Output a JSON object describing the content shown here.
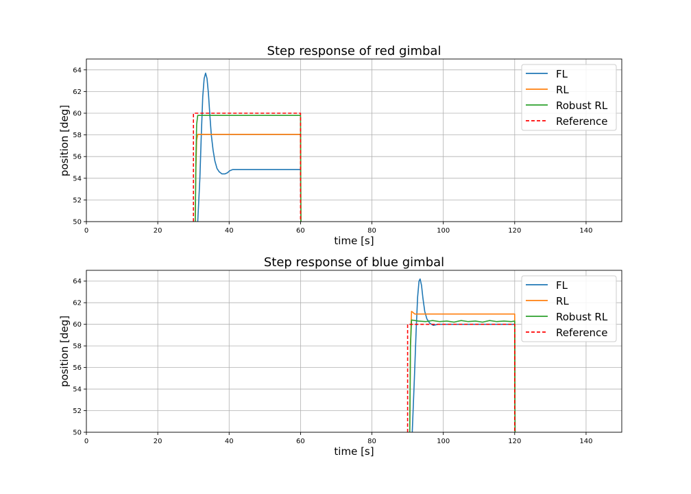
{
  "chart_data": [
    {
      "type": "line",
      "title": "Step response of red gimbal",
      "xlabel": "time [s]",
      "ylabel": "position [deg]",
      "xlim": [
        0,
        150
      ],
      "ylim": [
        50,
        65
      ],
      "xticks": [
        0,
        20,
        40,
        60,
        80,
        100,
        120,
        140
      ],
      "yticks": [
        50,
        52,
        54,
        56,
        58,
        60,
        62,
        64
      ],
      "grid": true,
      "legend_position": "top-right",
      "series": [
        {
          "name": "FL",
          "color": "#1f77b4",
          "style": "solid",
          "points": [
            [
              31.2,
              50
            ],
            [
              31.8,
              54
            ],
            [
              32.2,
              58
            ],
            [
              32.6,
              61.5
            ],
            [
              33,
              63.2
            ],
            [
              33.4,
              63.7
            ],
            [
              33.8,
              63.2
            ],
            [
              34.2,
              61.8
            ],
            [
              34.6,
              59.8
            ],
            [
              35,
              58
            ],
            [
              35.5,
              56.6
            ],
            [
              36,
              55.6
            ],
            [
              36.6,
              54.9
            ],
            [
              37.2,
              54.6
            ],
            [
              38,
              54.4
            ],
            [
              38.8,
              54.4
            ],
            [
              39.5,
              54.5
            ],
            [
              40.2,
              54.7
            ],
            [
              41,
              54.8
            ],
            [
              45,
              54.8
            ],
            [
              50,
              54.8
            ],
            [
              55,
              54.8
            ],
            [
              60,
              54.8
            ],
            [
              60.1,
              50
            ]
          ]
        },
        {
          "name": "RL",
          "color": "#ff7f0e",
          "style": "solid",
          "points": [
            [
              30.5,
              50
            ],
            [
              30.7,
              55
            ],
            [
              30.9,
              57.5
            ],
            [
              31.2,
              58.05
            ],
            [
              35,
              58.05
            ],
            [
              45,
              58.05
            ],
            [
              55,
              58.05
            ],
            [
              60,
              58.05
            ],
            [
              60.1,
              50
            ]
          ]
        },
        {
          "name": "Robust RL",
          "color": "#2ca02c",
          "style": "solid",
          "points": [
            [
              30.5,
              50
            ],
            [
              30.7,
              56
            ],
            [
              30.9,
              59
            ],
            [
              31.2,
              59.8
            ],
            [
              35,
              59.8
            ],
            [
              45,
              59.8
            ],
            [
              55,
              59.8
            ],
            [
              60,
              59.8
            ],
            [
              60.1,
              50
            ]
          ]
        },
        {
          "name": "Reference",
          "color": "#ff0000",
          "style": "dashed",
          "points": [
            [
              30,
              50
            ],
            [
              30,
              60
            ],
            [
              60,
              60
            ],
            [
              60,
              50
            ]
          ]
        }
      ]
    },
    {
      "type": "line",
      "title": "Step response of blue gimbal",
      "xlabel": "time [s]",
      "ylabel": "position [deg]",
      "xlim": [
        0,
        150
      ],
      "ylim": [
        50,
        65
      ],
      "xticks": [
        0,
        20,
        40,
        60,
        80,
        100,
        120,
        140
      ],
      "yticks": [
        50,
        52,
        54,
        56,
        58,
        60,
        62,
        64
      ],
      "grid": true,
      "legend_position": "top-right",
      "series": [
        {
          "name": "FL",
          "color": "#1f77b4",
          "style": "solid",
          "points": [
            [
              91.3,
              50
            ],
            [
              91.9,
              55
            ],
            [
              92.4,
              59.5
            ],
            [
              92.8,
              62.5
            ],
            [
              93.2,
              64
            ],
            [
              93.5,
              64.2
            ],
            [
              93.9,
              63.6
            ],
            [
              94.3,
              62.4
            ],
            [
              94.8,
              61.2
            ],
            [
              95.4,
              60.5
            ],
            [
              96.2,
              60.1
            ],
            [
              97.2,
              59.9
            ],
            [
              98.5,
              60
            ],
            [
              100,
              60
            ],
            [
              105,
              60
            ],
            [
              110,
              60
            ],
            [
              115,
              60
            ],
            [
              120,
              60
            ],
            [
              120.1,
              50
            ]
          ]
        },
        {
          "name": "RL",
          "color": "#ff7f0e",
          "style": "solid",
          "points": [
            [
              90.6,
              50
            ],
            [
              90.8,
              58
            ],
            [
              91.1,
              61.2
            ],
            [
              91.5,
              61.1
            ],
            [
              92,
              60.95
            ],
            [
              95,
              60.95
            ],
            [
              100,
              60.95
            ],
            [
              105,
              60.95
            ],
            [
              110,
              60.95
            ],
            [
              115,
              60.95
            ],
            [
              120,
              60.95
            ],
            [
              120.1,
              50
            ]
          ]
        },
        {
          "name": "Robust RL",
          "color": "#2ca02c",
          "style": "solid",
          "points": [
            [
              90.6,
              50
            ],
            [
              90.8,
              58
            ],
            [
              91.1,
              60.4
            ],
            [
              93,
              60.3
            ],
            [
              95,
              60.25
            ],
            [
              97,
              60.35
            ],
            [
              99,
              60.25
            ],
            [
              101,
              60.3
            ],
            [
              103,
              60.2
            ],
            [
              105,
              60.35
            ],
            [
              107,
              60.25
            ],
            [
              109,
              60.3
            ],
            [
              111,
              60.2
            ],
            [
              113,
              60.35
            ],
            [
              115,
              60.25
            ],
            [
              117,
              60.3
            ],
            [
              119,
              60.25
            ],
            [
              120,
              60.3
            ],
            [
              120.1,
              50
            ]
          ]
        },
        {
          "name": "Reference",
          "color": "#ff0000",
          "style": "dashed",
          "points": [
            [
              90,
              50
            ],
            [
              90,
              60
            ],
            [
              120,
              60
            ],
            [
              120,
              50
            ]
          ]
        }
      ]
    }
  ]
}
